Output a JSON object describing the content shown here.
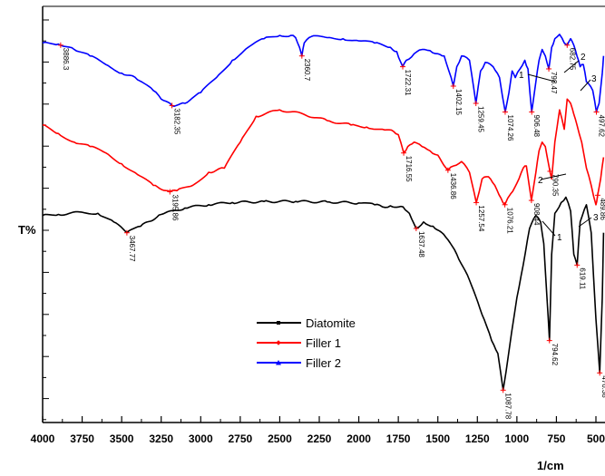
{
  "chart_data": {
    "type": "line",
    "xlabel": "1/cm",
    "ylabel": "T%",
    "xlim": [
      4000,
      450
    ],
    "x_ticks": [
      "4000",
      "3750",
      "3500",
      "3250",
      "3000",
      "2750",
      "2500",
      "2250",
      "2000",
      "1750",
      "1500",
      "1250",
      "1000",
      "750",
      "500"
    ],
    "legend_position": "center",
    "grid": false,
    "series": [
      {
        "name": "Diatomite",
        "color": "#000000",
        "marker": "square",
        "points": [
          [
            4000,
            0.28
          ],
          [
            3900,
            0.285
          ],
          [
            3750,
            0.295
          ],
          [
            3650,
            0.29
          ],
          [
            3550,
            0.25
          ],
          [
            3467,
            0.2
          ],
          [
            3380,
            0.23
          ],
          [
            3250,
            0.285
          ],
          [
            3100,
            0.315
          ],
          [
            2950,
            0.33
          ],
          [
            2800,
            0.34
          ],
          [
            2600,
            0.345
          ],
          [
            2400,
            0.345
          ],
          [
            2200,
            0.343
          ],
          [
            2000,
            0.338
          ],
          [
            1900,
            0.33
          ],
          [
            1850,
            0.32
          ],
          [
            1800,
            0.325
          ],
          [
            1720,
            0.32
          ],
          [
            1680,
            0.29
          ],
          [
            1637,
            0.22
          ],
          [
            1590,
            0.25
          ],
          [
            1530,
            0.23
          ],
          [
            1450,
            0.18
          ],
          [
            1380,
            0.1
          ],
          [
            1300,
            -0.02
          ],
          [
            1220,
            -0.18
          ],
          [
            1160,
            -0.3
          ],
          [
            1120,
            -0.36
          ],
          [
            1087,
            -0.53
          ],
          [
            1050,
            -0.35
          ],
          [
            1000,
            -0.1
          ],
          [
            960,
            0.05
          ],
          [
            920,
            0.22
          ],
          [
            880,
            0.28
          ],
          [
            850,
            0.25
          ],
          [
            830,
            0.15
          ],
          [
            810,
            -0.1
          ],
          [
            794,
            -0.3
          ],
          [
            780,
            0.1
          ],
          [
            760,
            0.29
          ],
          [
            720,
            0.34
          ],
          [
            690,
            0.365
          ],
          [
            660,
            0.3
          ],
          [
            640,
            0.1
          ],
          [
            619,
            0.05
          ],
          [
            600,
            0.25
          ],
          [
            560,
            0.33
          ],
          [
            530,
            0.2
          ],
          [
            500,
            -0.2
          ],
          [
            476,
            -0.45
          ],
          [
            460,
            -0.1
          ],
          [
            452,
            0.2
          ]
        ]
      },
      {
        "name": "Filler 1",
        "color": "#ff0000",
        "marker": "diamond",
        "points": [
          [
            4000,
            0.7
          ],
          [
            3900,
            0.66
          ],
          [
            3800,
            0.62
          ],
          [
            3700,
            0.6
          ],
          [
            3600,
            0.57
          ],
          [
            3500,
            0.52
          ],
          [
            3400,
            0.47
          ],
          [
            3300,
            0.42
          ],
          [
            3195,
            0.39
          ],
          [
            3150,
            0.395
          ],
          [
            3050,
            0.42
          ],
          [
            2950,
            0.48
          ],
          [
            2900,
            0.49
          ],
          [
            2850,
            0.5
          ],
          [
            2750,
            0.62
          ],
          [
            2650,
            0.74
          ],
          [
            2500,
            0.77
          ],
          [
            2350,
            0.75
          ],
          [
            2200,
            0.72
          ],
          [
            2050,
            0.7
          ],
          [
            1950,
            0.69
          ],
          [
            1850,
            0.68
          ],
          [
            1780,
            0.67
          ],
          [
            1750,
            0.655
          ],
          [
            1716,
            0.57
          ],
          [
            1690,
            0.6
          ],
          [
            1650,
            0.62
          ],
          [
            1600,
            0.6
          ],
          [
            1550,
            0.58
          ],
          [
            1500,
            0.56
          ],
          [
            1436,
            0.49
          ],
          [
            1400,
            0.51
          ],
          [
            1350,
            0.53
          ],
          [
            1300,
            0.48
          ],
          [
            1257,
            0.34
          ],
          [
            1220,
            0.45
          ],
          [
            1180,
            0.46
          ],
          [
            1140,
            0.42
          ],
          [
            1100,
            0.36
          ],
          [
            1076,
            0.33
          ],
          [
            1040,
            0.38
          ],
          [
            1000,
            0.43
          ],
          [
            960,
            0.5
          ],
          [
            940,
            0.51
          ],
          [
            908,
            0.35
          ],
          [
            880,
            0.48
          ],
          [
            860,
            0.58
          ],
          [
            840,
            0.62
          ],
          [
            820,
            0.6
          ],
          [
            800,
            0.52
          ],
          [
            780,
            0.45
          ],
          [
            760,
            0.62
          ],
          [
            730,
            0.77
          ],
          [
            700,
            0.68
          ],
          [
            682,
            0.82
          ],
          [
            660,
            0.8
          ],
          [
            640,
            0.75
          ],
          [
            620,
            0.7
          ],
          [
            590,
            0.62
          ],
          [
            560,
            0.5
          ],
          [
            530,
            0.42
          ],
          [
            500,
            0.33
          ],
          [
            490,
            0.37
          ],
          [
            470,
            0.45
          ],
          [
            452,
            0.55
          ]
        ]
      },
      {
        "name": "Filler 2",
        "color": "#0000ff",
        "marker": "triangle",
        "points": [
          [
            4000,
            1.08
          ],
          [
            3900,
            1.075
          ],
          [
            3886,
            1.07
          ],
          [
            3800,
            1.05
          ],
          [
            3700,
            1.02
          ],
          [
            3600,
            0.98
          ],
          [
            3500,
            0.94
          ],
          [
            3450,
            0.93
          ],
          [
            3400,
            0.91
          ],
          [
            3300,
            0.86
          ],
          [
            3250,
            0.82
          ],
          [
            3182,
            0.79
          ],
          [
            3100,
            0.8
          ],
          [
            3000,
            0.85
          ],
          [
            2900,
            0.92
          ],
          [
            2800,
            1.0
          ],
          [
            2700,
            1.06
          ],
          [
            2600,
            1.1
          ],
          [
            2500,
            1.115
          ],
          [
            2430,
            1.115
          ],
          [
            2400,
            1.105
          ],
          [
            2375,
            1.06
          ],
          [
            2360,
            1.02
          ],
          [
            2345,
            1.08
          ],
          [
            2300,
            1.11
          ],
          [
            2200,
            1.105
          ],
          [
            2100,
            1.1
          ],
          [
            2000,
            1.09
          ],
          [
            1900,
            1.08
          ],
          [
            1800,
            1.06
          ],
          [
            1760,
            1.04
          ],
          [
            1722,
            0.97
          ],
          [
            1700,
            1.0
          ],
          [
            1650,
            1.03
          ],
          [
            1600,
            1.05
          ],
          [
            1550,
            1.045
          ],
          [
            1500,
            1.03
          ],
          [
            1460,
            1.02
          ],
          [
            1430,
            0.95
          ],
          [
            1402,
            0.88
          ],
          [
            1380,
            0.97
          ],
          [
            1350,
            1.02
          ],
          [
            1300,
            1.0
          ],
          [
            1259,
            0.8
          ],
          [
            1230,
            0.95
          ],
          [
            1200,
            0.99
          ],
          [
            1150,
            0.97
          ],
          [
            1110,
            0.92
          ],
          [
            1074,
            0.76
          ],
          [
            1050,
            0.85
          ],
          [
            1030,
            0.95
          ],
          [
            1010,
            0.92
          ],
          [
            980,
            0.96
          ],
          [
            950,
            1.0
          ],
          [
            930,
            0.96
          ],
          [
            906,
            0.76
          ],
          [
            880,
            0.9
          ],
          [
            860,
            1.0
          ],
          [
            840,
            1.05
          ],
          [
            820,
            1.02
          ],
          [
            798,
            0.96
          ],
          [
            780,
            1.06
          ],
          [
            760,
            1.1
          ],
          [
            730,
            1.12
          ],
          [
            700,
            1.08
          ],
          [
            682,
            1.07
          ],
          [
            660,
            1.1
          ],
          [
            640,
            1.07
          ],
          [
            620,
            1.02
          ],
          [
            600,
            0.97
          ],
          [
            580,
            0.98
          ],
          [
            560,
            0.9
          ],
          [
            520,
            0.86
          ],
          [
            497,
            0.76
          ],
          [
            480,
            0.8
          ],
          [
            460,
            0.94
          ],
          [
            452,
            1.02
          ]
        ]
      }
    ],
    "peaks": {
      "diatomite": [
        {
          "x": 3467,
          "label": "3467.77"
        },
        {
          "x": 1637,
          "label": "1637.48"
        },
        {
          "x": 1087,
          "label": "1087.78"
        },
        {
          "x": 794,
          "label": "794.62"
        },
        {
          "x": 619,
          "label": "619.11"
        },
        {
          "x": 476,
          "label": "476.38"
        }
      ],
      "filler1": [
        {
          "x": 3195,
          "label": "3195.86"
        },
        {
          "x": 1716,
          "label": "1716.55"
        },
        {
          "x": 1436,
          "label": "1436.86"
        },
        {
          "x": 1257,
          "label": "1257.54"
        },
        {
          "x": 1076,
          "label": "1076.21"
        },
        {
          "x": 908,
          "label": "908.44"
        },
        {
          "x": 790,
          "label": "790.35"
        },
        {
          "x": 489,
          "label": "489.86"
        }
      ],
      "filler2": [
        {
          "x": 3886,
          "label": "3886.3"
        },
        {
          "x": 3182,
          "label": "3182.35"
        },
        {
          "x": 2360,
          "label": "2360.7"
        },
        {
          "x": 1722,
          "label": "1722.31"
        },
        {
          "x": 1402,
          "label": "1402.15"
        },
        {
          "x": 1259,
          "label": "1259.45"
        },
        {
          "x": 1074,
          "label": "1074.26"
        },
        {
          "x": 906,
          "label": "906.48"
        },
        {
          "x": 798,
          "label": "798.47"
        },
        {
          "x": 682,
          "label": "682.75"
        },
        {
          "x": 497,
          "label": "497.62"
        }
      ]
    },
    "band_markers": [
      "1",
      "2",
      "3",
      "2",
      "3",
      "1"
    ]
  }
}
